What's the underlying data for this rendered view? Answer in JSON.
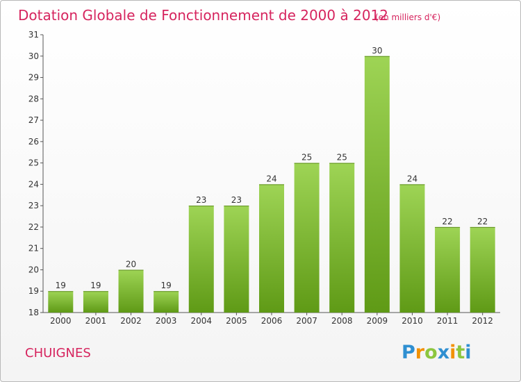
{
  "chart_data": {
    "type": "bar",
    "title": "Dotation Globale de Fonctionnement de 2000 à 2012",
    "subtitle": "(en milliers d'€)",
    "categories": [
      "2000",
      "2001",
      "2002",
      "2003",
      "2004",
      "2005",
      "2006",
      "2007",
      "2008",
      "2009",
      "2010",
      "2011",
      "2012"
    ],
    "values": [
      19,
      19,
      20,
      19,
      23,
      23,
      24,
      25,
      25,
      30,
      24,
      22,
      22
    ],
    "ylim": [
      18,
      31
    ],
    "yticks": [
      18,
      19,
      20,
      21,
      22,
      23,
      24,
      25,
      26,
      27,
      28,
      29,
      30,
      31
    ],
    "xlabel": "",
    "ylabel": "",
    "grid": false,
    "legend": "none",
    "colors": {
      "bar_top": "#9ed455",
      "bar_bottom": "#5f9a16",
      "text": "#333333",
      "accent": "#d6245e"
    }
  },
  "commune": "CHUIGNES",
  "logo": {
    "text": "Proxiti",
    "letters": [
      {
        "char": "P",
        "color": "#2f8fd1"
      },
      {
        "char": "r",
        "color": "#f29100"
      },
      {
        "char": "o",
        "color": "#8cc63f"
      },
      {
        "char": "x",
        "color": "#2f8fd1"
      },
      {
        "char": "i",
        "color": "#f29100"
      },
      {
        "char": "t",
        "color": "#8cc63f"
      },
      {
        "char": "i",
        "color": "#2f8fd1"
      }
    ]
  }
}
